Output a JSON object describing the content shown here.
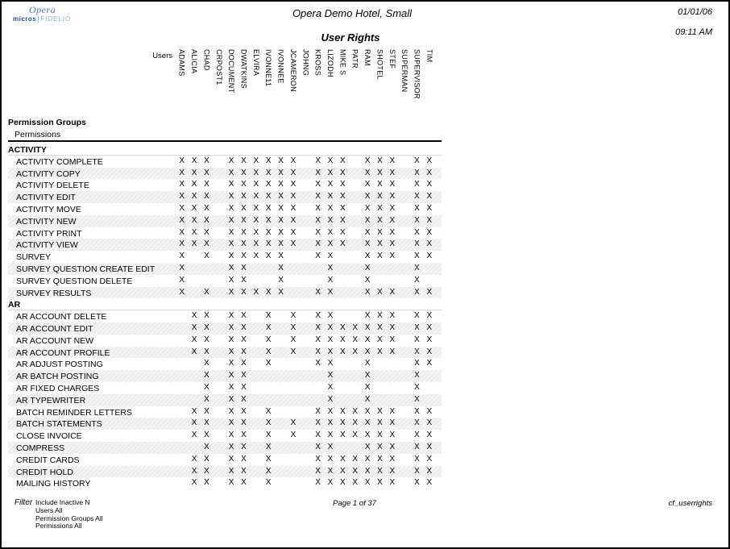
{
  "page": {
    "logo": {
      "opera": "Opera",
      "micros": "micros",
      "fidelio": "FIDELIO"
    },
    "header": {
      "hotel": "Opera Demo Hotel, Small",
      "report_title": "User Rights",
      "date": "01/01/06",
      "time": "09:11 AM"
    },
    "colors": {
      "logo_blue": "#4878b6",
      "logo_dark_blue": "#1b4fa0",
      "logo_light_blue": "#8fafd6",
      "shaded_row": "#ececec",
      "text": "#000000"
    }
  },
  "table": {
    "users_label": "Users",
    "permission_groups_header": "Permission Groups",
    "permissions_header": "Permissions",
    "mark": "X",
    "users": [
      "ADAMS",
      "ALICIA",
      "CHAD",
      "CRPOST1",
      "DOCUMENT",
      "DWATKINS",
      "ELVIRA",
      "IVONNE11",
      "IVONNEE",
      "JCAMERON",
      "JOHNG",
      "KROSS",
      "LIZODH",
      "MIKE S",
      "PATR",
      "RAM",
      "SHOTEL",
      "STEF",
      "SUPERMAN",
      "SUPERVISOR",
      "TIM"
    ],
    "groups": [
      {
        "name": "ACTIVITY",
        "rows": [
          {
            "name": "ACTIVITY COMPLETE",
            "marks": [
              1,
              1,
              1,
              0,
              1,
              1,
              1,
              1,
              1,
              1,
              0,
              1,
              1,
              1,
              0,
              1,
              1,
              1,
              0,
              1,
              1
            ]
          },
          {
            "name": "ACTIVITY COPY",
            "marks": [
              1,
              1,
              1,
              0,
              1,
              1,
              1,
              1,
              1,
              1,
              0,
              1,
              1,
              1,
              0,
              1,
              1,
              1,
              0,
              1,
              1
            ]
          },
          {
            "name": "ACTIVITY DELETE",
            "marks": [
              1,
              1,
              1,
              0,
              1,
              1,
              1,
              1,
              1,
              1,
              0,
              1,
              1,
              1,
              0,
              1,
              1,
              1,
              0,
              1,
              1
            ]
          },
          {
            "name": "ACTIVITY EDIT",
            "marks": [
              1,
              1,
              1,
              0,
              1,
              1,
              1,
              1,
              1,
              1,
              0,
              1,
              1,
              1,
              0,
              1,
              1,
              1,
              0,
              1,
              1
            ]
          },
          {
            "name": "ACTIVITY MOVE",
            "marks": [
              1,
              1,
              1,
              0,
              1,
              1,
              1,
              1,
              1,
              1,
              0,
              1,
              1,
              1,
              0,
              1,
              1,
              1,
              0,
              1,
              1
            ]
          },
          {
            "name": "ACTIVITY NEW",
            "marks": [
              1,
              1,
              1,
              0,
              1,
              1,
              1,
              1,
              1,
              1,
              0,
              1,
              1,
              1,
              0,
              1,
              1,
              1,
              0,
              1,
              1
            ]
          },
          {
            "name": "ACTIVITY PRINT",
            "marks": [
              1,
              1,
              1,
              0,
              1,
              1,
              1,
              1,
              1,
              1,
              0,
              1,
              1,
              1,
              0,
              1,
              1,
              1,
              0,
              1,
              1
            ]
          },
          {
            "name": "ACTIVITY VIEW",
            "marks": [
              1,
              1,
              1,
              0,
              1,
              1,
              1,
              1,
              1,
              1,
              0,
              1,
              1,
              1,
              0,
              1,
              1,
              1,
              0,
              1,
              1
            ]
          },
          {
            "name": "SURVEY",
            "marks": [
              1,
              0,
              1,
              0,
              1,
              1,
              1,
              1,
              1,
              0,
              0,
              1,
              1,
              0,
              0,
              1,
              1,
              1,
              0,
              1,
              1
            ]
          },
          {
            "name": "SURVEY QUESTION CREATE EDIT",
            "marks": [
              1,
              0,
              0,
              0,
              1,
              1,
              0,
              0,
              1,
              0,
              0,
              0,
              1,
              0,
              0,
              1,
              0,
              0,
              0,
              1,
              0
            ]
          },
          {
            "name": "SURVEY QUESTION DELETE",
            "marks": [
              1,
              0,
              0,
              0,
              1,
              1,
              0,
              0,
              1,
              0,
              0,
              0,
              1,
              0,
              0,
              1,
              0,
              0,
              0,
              1,
              0
            ]
          },
          {
            "name": "SURVEY RESULTS",
            "marks": [
              1,
              0,
              1,
              0,
              1,
              1,
              1,
              1,
              1,
              0,
              0,
              1,
              1,
              0,
              0,
              1,
              1,
              1,
              0,
              1,
              1
            ]
          }
        ]
      },
      {
        "name": "AR",
        "rows": [
          {
            "name": "AR ACCOUNT DELETE",
            "marks": [
              0,
              1,
              1,
              0,
              1,
              1,
              0,
              1,
              0,
              1,
              0,
              1,
              1,
              0,
              0,
              1,
              1,
              1,
              0,
              1,
              1
            ]
          },
          {
            "name": "AR ACCOUNT EDIT",
            "marks": [
              0,
              1,
              1,
              0,
              1,
              1,
              0,
              1,
              0,
              1,
              0,
              1,
              1,
              1,
              1,
              1,
              1,
              1,
              0,
              1,
              1
            ]
          },
          {
            "name": "AR ACCOUNT NEW",
            "marks": [
              0,
              1,
              1,
              0,
              1,
              1,
              0,
              1,
              0,
              1,
              0,
              1,
              1,
              1,
              1,
              1,
              1,
              1,
              0,
              1,
              1
            ]
          },
          {
            "name": "AR ACCOUNT PROFILE",
            "marks": [
              0,
              1,
              1,
              0,
              1,
              1,
              0,
              1,
              0,
              1,
              0,
              1,
              1,
              1,
              1,
              1,
              1,
              1,
              0,
              1,
              1
            ]
          },
          {
            "name": "AR ADJUST POSTING",
            "marks": [
              0,
              0,
              1,
              0,
              1,
              1,
              0,
              1,
              0,
              0,
              0,
              1,
              1,
              0,
              0,
              1,
              0,
              0,
              0,
              1,
              1
            ]
          },
          {
            "name": "AR BATCH POSTING",
            "marks": [
              0,
              0,
              1,
              0,
              1,
              1,
              0,
              0,
              0,
              0,
              0,
              0,
              1,
              0,
              0,
              1,
              0,
              0,
              0,
              1,
              0
            ]
          },
          {
            "name": "AR FIXED CHARGES",
            "marks": [
              0,
              0,
              1,
              0,
              1,
              1,
              0,
              0,
              0,
              0,
              0,
              0,
              1,
              0,
              0,
              1,
              0,
              0,
              0,
              1,
              0
            ]
          },
          {
            "name": "AR TYPEWRITER",
            "marks": [
              0,
              0,
              1,
              0,
              1,
              1,
              0,
              0,
              0,
              0,
              0,
              0,
              1,
              0,
              0,
              1,
              0,
              0,
              0,
              1,
              0
            ]
          },
          {
            "name": "BATCH REMINDER LETTERS",
            "marks": [
              0,
              1,
              1,
              0,
              1,
              1,
              0,
              1,
              0,
              0,
              0,
              1,
              1,
              1,
              1,
              1,
              1,
              1,
              0,
              1,
              1
            ]
          },
          {
            "name": "BATCH STATEMENTS",
            "marks": [
              0,
              1,
              1,
              0,
              1,
              1,
              0,
              1,
              0,
              1,
              0,
              1,
              1,
              1,
              1,
              1,
              1,
              1,
              0,
              1,
              1
            ]
          },
          {
            "name": "CLOSE INVOICE",
            "marks": [
              0,
              1,
              1,
              0,
              1,
              1,
              0,
              1,
              0,
              1,
              0,
              1,
              1,
              1,
              1,
              1,
              1,
              1,
              0,
              1,
              1
            ]
          },
          {
            "name": "COMPRESS",
            "marks": [
              0,
              0,
              1,
              0,
              1,
              1,
              0,
              1,
              0,
              0,
              0,
              1,
              1,
              0,
              0,
              1,
              1,
              1,
              0,
              1,
              1
            ]
          },
          {
            "name": "CREDIT CARDS",
            "marks": [
              0,
              1,
              1,
              0,
              1,
              1,
              0,
              1,
              0,
              0,
              0,
              1,
              1,
              1,
              1,
              1,
              1,
              1,
              0,
              1,
              1
            ]
          },
          {
            "name": "CREDIT HOLD",
            "marks": [
              0,
              1,
              1,
              0,
              1,
              1,
              0,
              1,
              0,
              0,
              0,
              1,
              1,
              1,
              1,
              1,
              1,
              1,
              0,
              1,
              1
            ]
          },
          {
            "name": "MAILING HISTORY",
            "marks": [
              0,
              1,
              1,
              0,
              1,
              1,
              0,
              1,
              0,
              0,
              0,
              1,
              1,
              1,
              1,
              1,
              1,
              1,
              0,
              1,
              1
            ]
          }
        ]
      }
    ]
  },
  "footer": {
    "filter_label": "Filter",
    "filter_lines": [
      "Include Inactive N",
      "Users All",
      "Permission Groups All",
      "Permissions All"
    ],
    "page_info": "Page 1 of 37",
    "report_code": "cf_userrights"
  }
}
